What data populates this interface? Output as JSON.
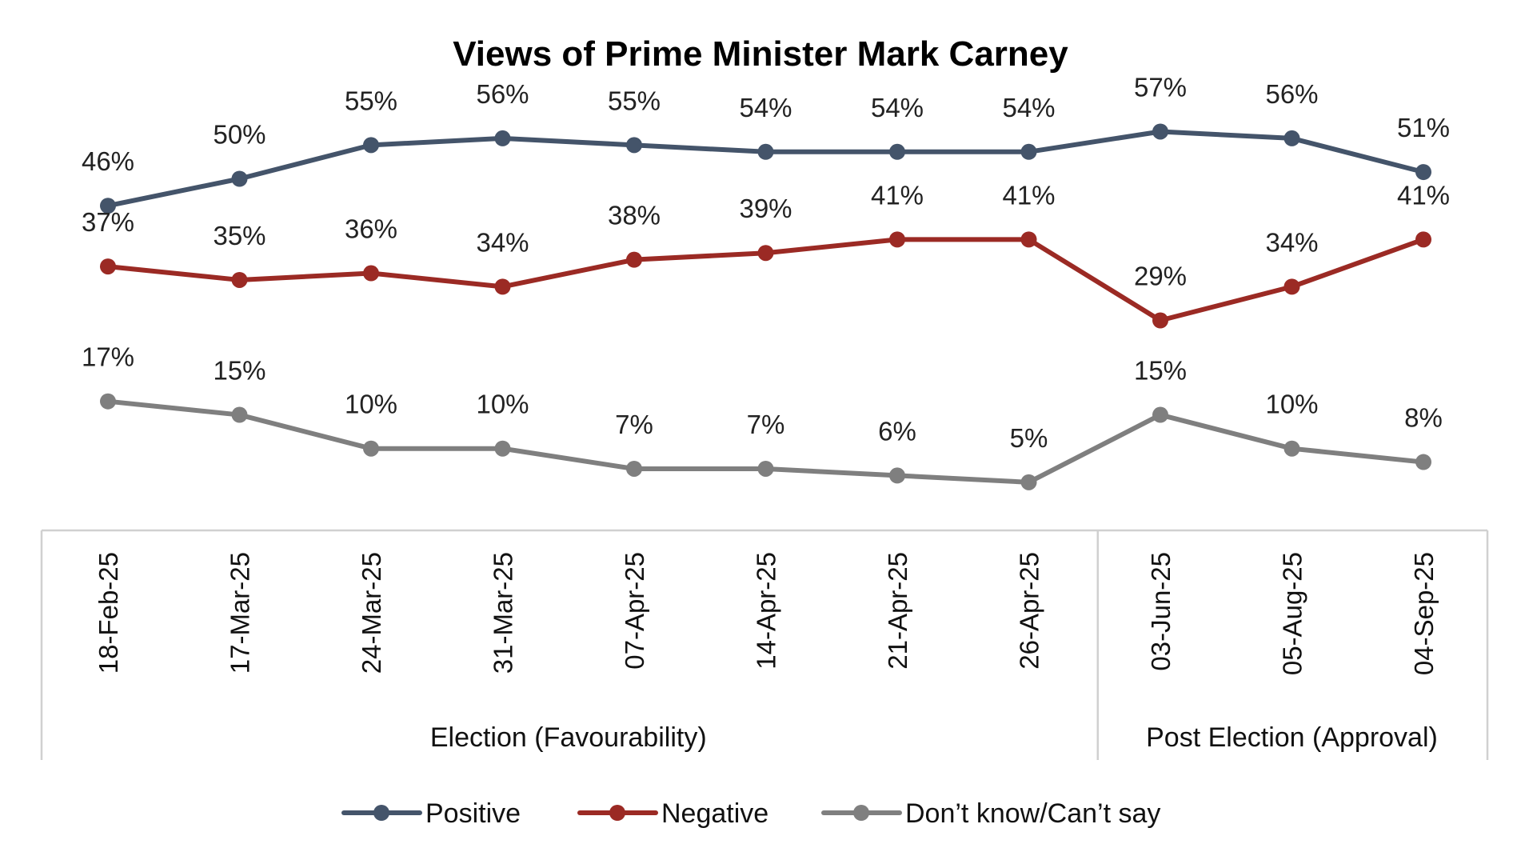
{
  "chart_data": {
    "type": "line",
    "title": "Views of Prime Minister Mark Carney",
    "categories": [
      "18-Feb-25",
      "17-Mar-25",
      "24-Mar-25",
      "31-Mar-25",
      "07-Apr-25",
      "14-Apr-25",
      "21-Apr-25",
      "26-Apr-25",
      "03-Jun-25",
      "05-Aug-25",
      "04-Sep-25"
    ],
    "series": [
      {
        "name": "Positive",
        "color": "#44546A",
        "values": [
          46,
          50,
          55,
          56,
          55,
          54,
          54,
          54,
          57,
          56,
          51
        ],
        "labels": [
          "46%",
          "50%",
          "55%",
          "56%",
          "55%",
          "54%",
          "54%",
          "54%",
          "57%",
          "56%",
          "51%"
        ]
      },
      {
        "name": "Negative",
        "color": "#9B2A24",
        "values": [
          37,
          35,
          36,
          34,
          38,
          39,
          41,
          41,
          29,
          34,
          41
        ],
        "labels": [
          "37%",
          "35%",
          "36%",
          "34%",
          "38%",
          "39%",
          "41%",
          "41%",
          "29%",
          "34%",
          "41%"
        ]
      },
      {
        "name": "Don’t know/Can’t say",
        "color": "#7F7F7F",
        "values": [
          17,
          15,
          10,
          10,
          7,
          7,
          6,
          5,
          15,
          10,
          8
        ],
        "labels": [
          "17%",
          "15%",
          "10%",
          "10%",
          "7%",
          "7%",
          "6%",
          "5%",
          "15%",
          "10%",
          "8%"
        ]
      }
    ],
    "groups": [
      {
        "label": "Election (Favourability)",
        "count": 8
      },
      {
        "label": "Post Election (Approval)",
        "count": 3
      }
    ],
    "xlabel": "",
    "ylabel": "",
    "grid": false,
    "legend": "bottom"
  }
}
